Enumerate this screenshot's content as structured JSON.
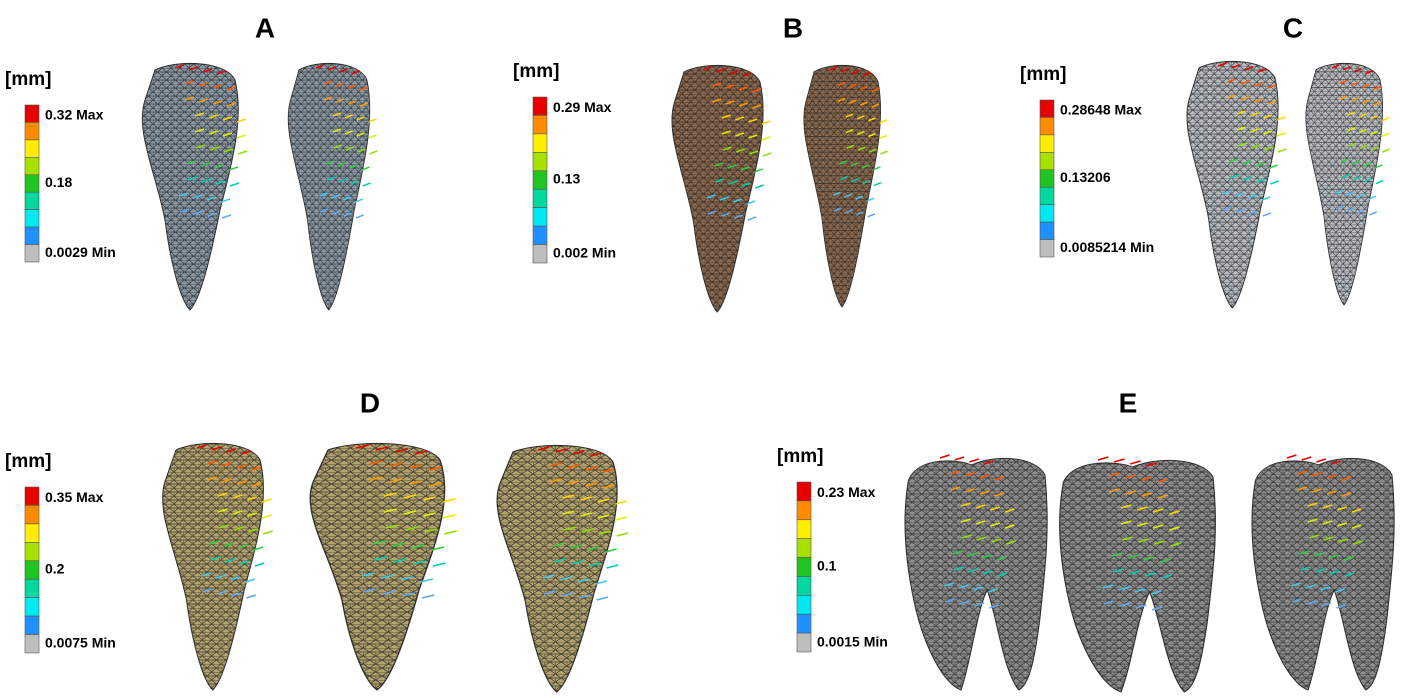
{
  "panels": [
    {
      "label": "A",
      "unit": "[mm]",
      "legend": {
        "max": "0.32 Max",
        "mid": "0.18",
        "min": "0.0029 Min"
      }
    },
    {
      "label": "B",
      "unit": "[mm]",
      "legend": {
        "max": "0.29 Max",
        "mid": "0.13",
        "min": "0.002 Min"
      }
    },
    {
      "label": "C",
      "unit": "[mm]",
      "legend": {
        "max": "0.28648 Max",
        "mid": "0.13206",
        "min": "0.0085214 Min"
      }
    },
    {
      "label": "D",
      "unit": "[mm]",
      "legend": {
        "max": "0.35 Max",
        "mid": "0.2",
        "min": "0.0075 Min"
      }
    },
    {
      "label": "E",
      "unit": "[mm]",
      "legend": {
        "max": "0.23 Max",
        "mid": "0.1",
        "min": "0.0015 Min"
      }
    }
  ]
}
